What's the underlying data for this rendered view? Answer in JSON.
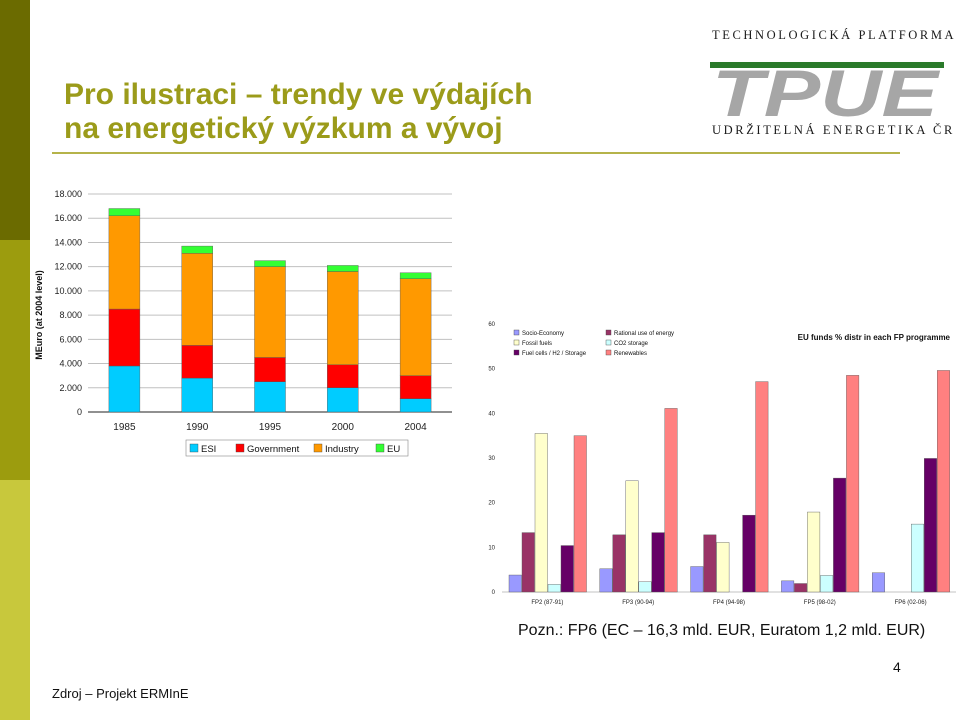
{
  "title": {
    "line1": "Pro ilustraci – trendy ve výdajích",
    "line2": "na energetický výzkum a vývoj"
  },
  "logo": {
    "top_text": "TECHNOLOGICKÁ PLATFORMA",
    "mark_text": "TPUE",
    "bottom_text": "UDRŽITELNÁ ENERGETIKA ČR"
  },
  "colors": {
    "sidebar_dark": "#6b6b00",
    "sidebar_mid": "#9c9c0e",
    "sidebar_light": "#c8c83c",
    "title": "#9b9b1a"
  },
  "note": "Pozn.: FP6 (EC – 16,3 mld. EUR, Euratom 1,2 mld. EUR)",
  "page_number": "4",
  "source": "Zdroj – Projekt ERMInE",
  "chart_data": [
    {
      "type": "bar",
      "stacked": true,
      "title": "",
      "xlabel": "",
      "ylabel": "MEuro (at 2004 level)",
      "ylim": [
        0,
        18000
      ],
      "y_ticks": [
        "0",
        "2.000",
        "4.000",
        "6.000",
        "8.000",
        "10.000",
        "12.000",
        "14.000",
        "16.000",
        "18.000"
      ],
      "grid": true,
      "legend_position": "bottom",
      "categories": [
        "1985",
        "1990",
        "1995",
        "2000",
        "2004"
      ],
      "series": [
        {
          "name": "ESI",
          "color": "#00ccff",
          "values": [
            3800,
            2800,
            2500,
            2000,
            1100
          ]
        },
        {
          "name": "Government",
          "color": "#ff0000",
          "values": [
            4700,
            2700,
            2000,
            1900,
            1900
          ]
        },
        {
          "name": "Industry",
          "color": "#ff9900",
          "values": [
            7700,
            7600,
            7500,
            7700,
            8000
          ]
        },
        {
          "name": "EU",
          "color": "#33ff33",
          "values": [
            600,
            600,
            500,
            500,
            500
          ]
        }
      ]
    },
    {
      "type": "bar",
      "title": "EU funds % distr in each FP programme",
      "xlabel": "",
      "ylabel": "",
      "ylim": [
        0,
        60
      ],
      "y_ticks": [
        "0",
        "10",
        "20",
        "30",
        "40",
        "50",
        "60"
      ],
      "grid": false,
      "legend_position": "top-left",
      "categories": [
        "FP2 (87-91)",
        "FP3 (90-94)",
        "FP4 (94-98)",
        "FP5 (98-02)",
        "FP6 (02-06)"
      ],
      "series": [
        {
          "name": "Socio-Economy",
          "color": "#9999ff",
          "values": [
            3.8,
            5.2,
            5.7,
            2.5,
            4.3
          ]
        },
        {
          "name": "Rational use of energy",
          "color": "#993366",
          "values": [
            13.3,
            12.8,
            12.8,
            1.9,
            0
          ]
        },
        {
          "name": "Fossil fuels",
          "color": "#ffffcc",
          "values": [
            35.5,
            24.9,
            11.1,
            17.9,
            0
          ]
        },
        {
          "name": "CO2 storage",
          "color": "#ccffff",
          "values": [
            1.7,
            2.3,
            0,
            3.7,
            15.2
          ]
        },
        {
          "name": "Fuel cells / H2 / Storage",
          "color": "#660066",
          "values": [
            10.4,
            13.3,
            17.2,
            25.5,
            29.9
          ]
        },
        {
          "name": "Renewables",
          "color": "#ff8080",
          "values": [
            35.0,
            41.1,
            47.1,
            48.5,
            49.6
          ]
        }
      ]
    }
  ]
}
